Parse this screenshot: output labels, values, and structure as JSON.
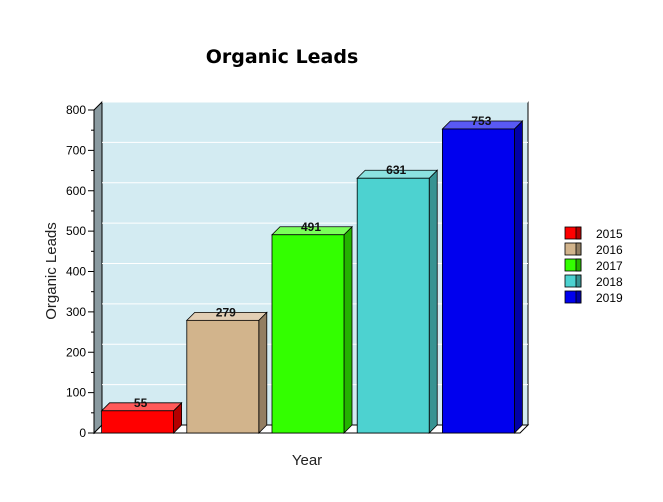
{
  "chart_data": {
    "type": "bar",
    "title": "Organic Leads",
    "xlabel": "Year",
    "ylabel": "Organic Leads",
    "categories": [
      "2015",
      "2016",
      "2017",
      "2018",
      "2019"
    ],
    "values": [
      55,
      279,
      491,
      631,
      753
    ],
    "data_labels": [
      "55",
      "279",
      "491",
      "631",
      "753"
    ],
    "colors": [
      "#ff0000",
      "#d2b48c",
      "#33ff00",
      "#4dd2d0",
      "#0000ee"
    ],
    "ylim": [
      0,
      800
    ],
    "yticks": [
      0,
      100,
      200,
      300,
      400,
      500,
      600,
      700,
      800
    ],
    "ytick_labels": [
      "0",
      "100",
      "200",
      "300",
      "400",
      "500",
      "600",
      "700",
      "800"
    ],
    "grid": true,
    "legend": "right",
    "plot_background": "#d3ebf2",
    "style": "3d"
  }
}
